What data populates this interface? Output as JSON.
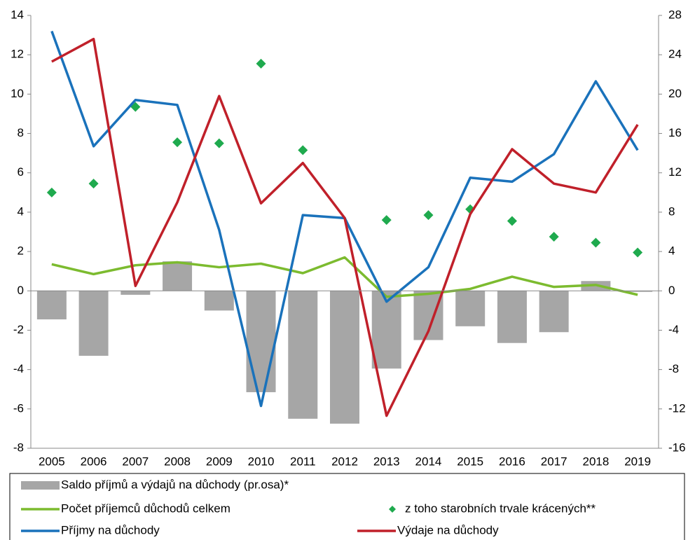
{
  "chart_data": {
    "type": "combo",
    "categories": [
      "2005",
      "2006",
      "2007",
      "2008",
      "2009",
      "2010",
      "2011",
      "2012",
      "2013",
      "2014",
      "2015",
      "2016",
      "2017",
      "2018",
      "2019"
    ],
    "ylim": [
      -8,
      14
    ],
    "yticks": [
      -8,
      -6,
      -4,
      -2,
      0,
      2,
      4,
      6,
      8,
      10,
      12,
      14
    ],
    "y2lim": [
      -16,
      28
    ],
    "y2ticks": [
      -16,
      -12,
      -8,
      -4,
      0,
      4,
      8,
      12,
      16,
      20,
      24,
      28
    ],
    "series": [
      {
        "name": "Saldo příjmů a výdajů na důchody (pr.osa)*",
        "type": "bar",
        "axis": "y2",
        "color": "#a6a6a6",
        "values": [
          -2.9,
          -6.6,
          -0.4,
          3.0,
          -2.0,
          -10.3,
          -13.0,
          -13.5,
          -7.9,
          -5.0,
          -3.6,
          -5.3,
          -4.2,
          1.0,
          -0.1
        ]
      },
      {
        "name": "Počet příjemců důchodů celkem",
        "type": "line",
        "color": "#7cbb2f",
        "values": [
          1.35,
          0.85,
          1.3,
          1.45,
          1.2,
          1.38,
          0.9,
          1.7,
          -0.3,
          -0.15,
          0.1,
          0.72,
          0.2,
          0.3,
          -0.2
        ]
      },
      {
        "name": "z toho starobních trvale krácených**",
        "type": "scatter",
        "color": "#1faa4e",
        "values": [
          5.0,
          5.45,
          9.35,
          7.55,
          7.5,
          11.55,
          7.15,
          null,
          3.6,
          3.85,
          4.15,
          3.55,
          2.75,
          2.45,
          1.95
        ]
      },
      {
        "name": "Příjmy na důchody",
        "type": "line",
        "color": "#1a72bb",
        "values": [
          13.2,
          7.35,
          9.7,
          9.45,
          3.1,
          -5.85,
          3.85,
          3.7,
          -0.55,
          1.2,
          5.75,
          5.55,
          6.95,
          10.65,
          7.15
        ]
      },
      {
        "name": "Výdaje na důchody",
        "type": "line",
        "color": "#c0202a",
        "values": [
          11.65,
          12.8,
          0.25,
          4.5,
          9.9,
          4.45,
          6.5,
          3.7,
          -6.35,
          -2.05,
          3.9,
          7.2,
          5.45,
          5.0,
          8.45
        ]
      }
    ]
  }
}
